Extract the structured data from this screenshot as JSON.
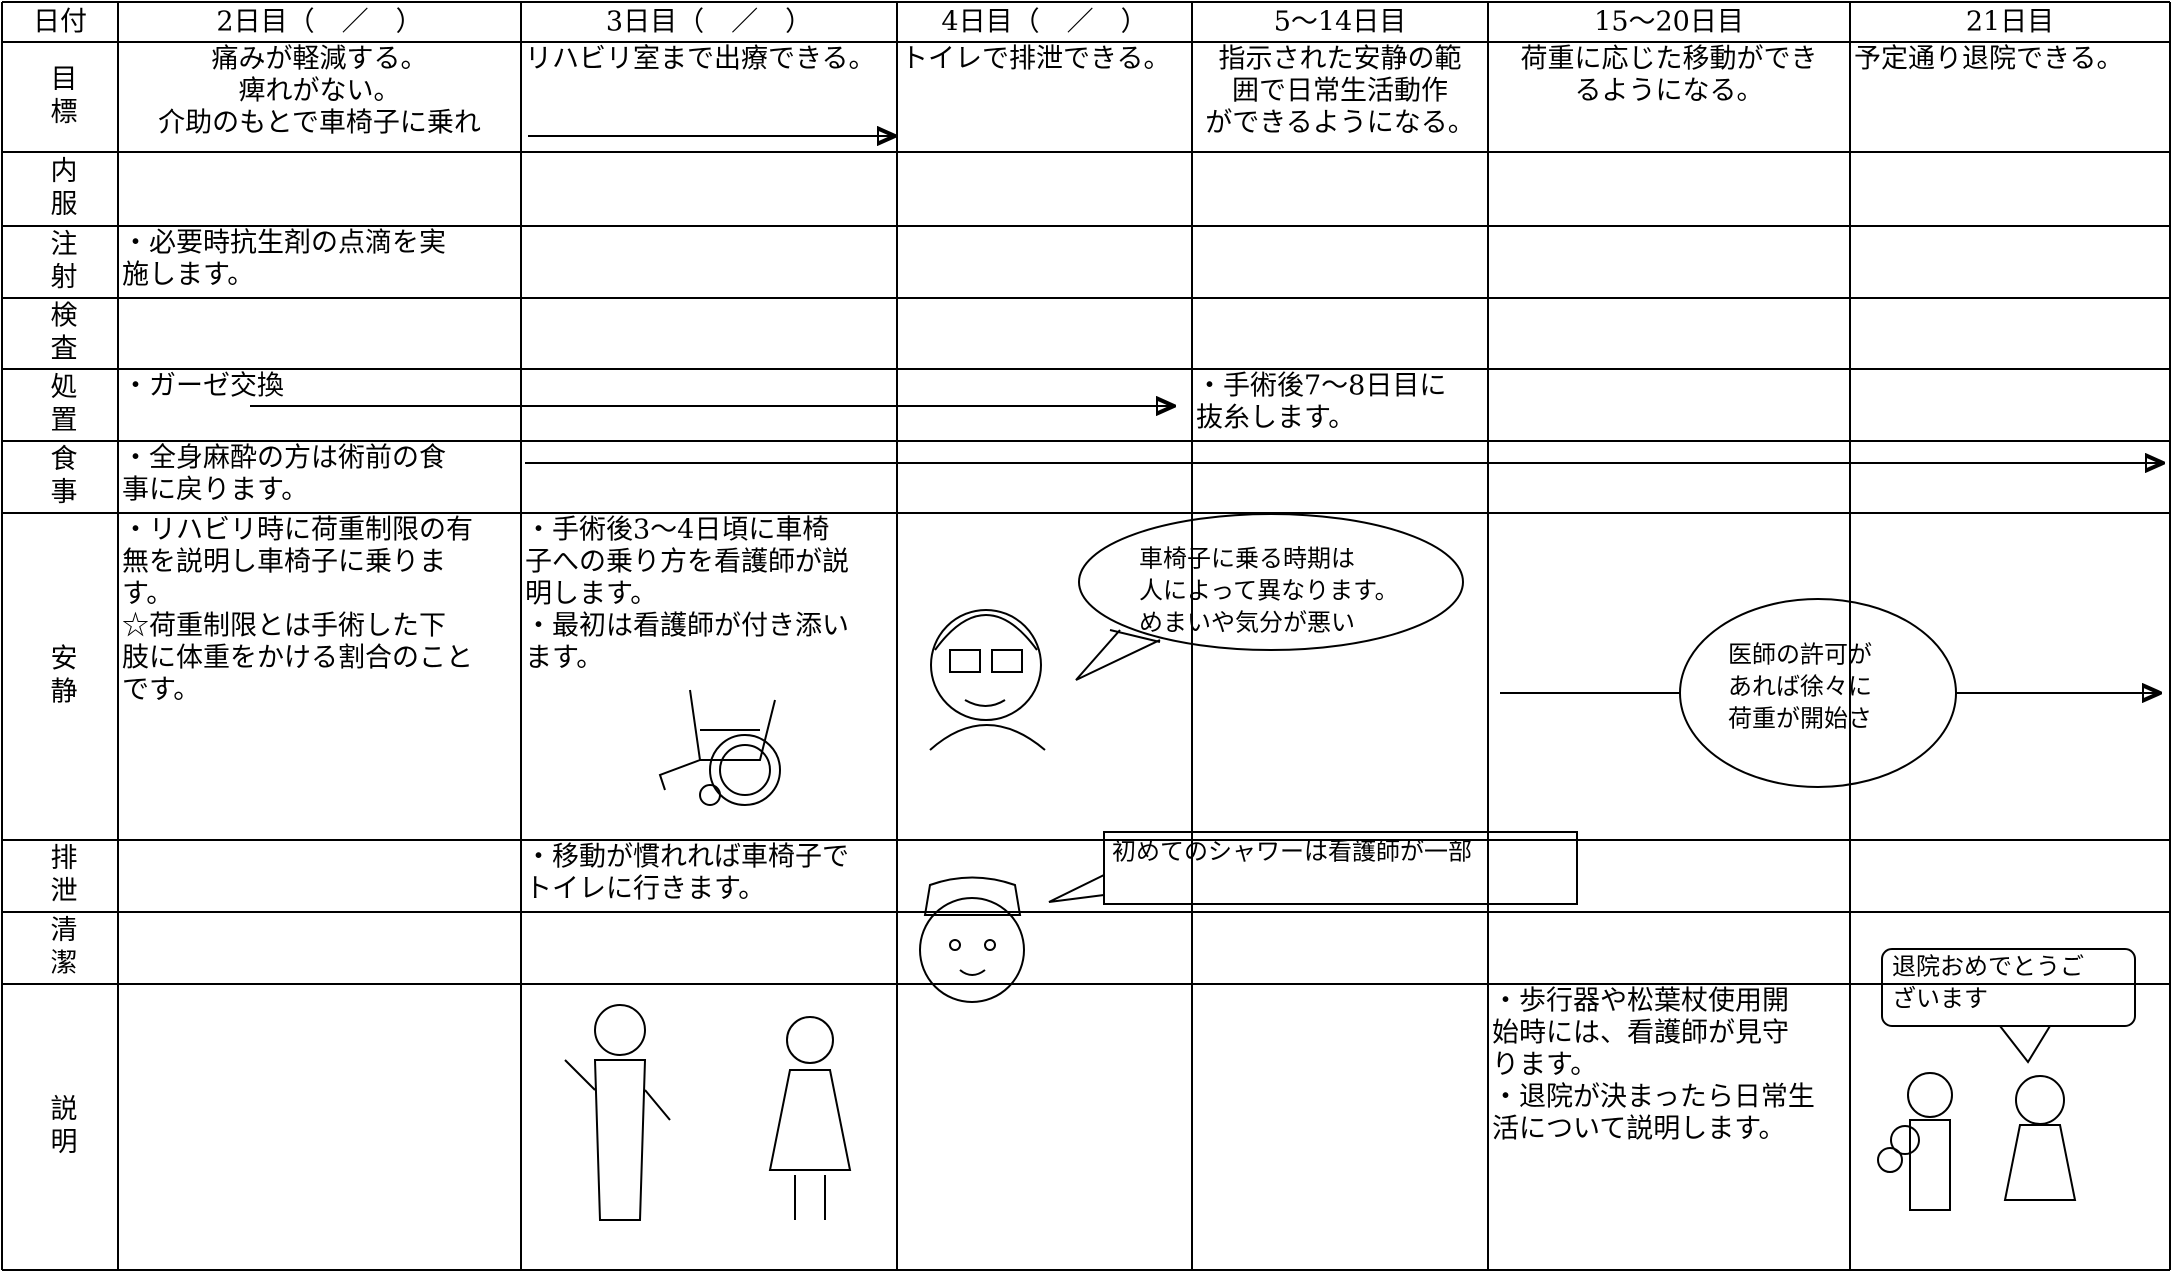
{
  "table": {
    "header": [
      "日付",
      "2日目（　／　）",
      "3日目（　／　）",
      "4日目（　／　）",
      "5〜14日目",
      "15〜20日目",
      "21日目"
    ],
    "rows": [
      {
        "label": "目標",
        "cells": [
          [
            "痛みが軽減する。",
            "痺れがない。",
            "介助のもとで車椅子に乗れ"
          ],
          [
            "リハビリ室まで出療できる。"
          ],
          [
            "トイレで排泄できる。"
          ],
          [
            "指示された安静の範",
            "囲で日常生活動作",
            "ができるようになる。"
          ],
          [
            "荷重に応じた移動ができ",
            "るようになる。"
          ],
          [
            "予定通り退院できる。"
          ]
        ]
      },
      {
        "label": "内服",
        "cells": [
          null,
          null,
          null,
          null,
          null,
          null
        ]
      },
      {
        "label": "注射",
        "cells": [
          [
            "・必要時抗生剤の点滴を実",
            "施します。"
          ],
          null,
          null,
          null,
          null,
          null
        ]
      },
      {
        "label": "検査",
        "cells": [
          null,
          null,
          null,
          null,
          null,
          null
        ]
      },
      {
        "label": "処置",
        "cells": [
          [
            "・ガーゼ交換"
          ],
          null,
          null,
          [
            "・手術後7〜8日目に",
            "抜糸します。"
          ],
          null,
          null
        ]
      },
      {
        "label": "食事",
        "cells": [
          [
            "・全身麻酔の方は術前の食",
            "事に戻ります。"
          ],
          null,
          null,
          null,
          null,
          null
        ]
      },
      {
        "label": "安静",
        "cells": [
          [
            "・リハビリ時に荷重制限の有",
            "無を説明し車椅子に乗りま",
            "す。",
            "☆荷重制限とは手術した下",
            "肢に体重をかける割合のこと",
            "です。"
          ],
          [
            "・手術後3〜4日頃に車椅",
            "子への乗り方を看護師が説",
            "明します。",
            "・最初は看護師が付き添い",
            "ます。"
          ],
          null,
          null,
          null,
          null
        ]
      },
      {
        "label": "排泄",
        "cells": [
          null,
          [
            "・移動が慣れれば車椅子で",
            "トイレに行きます。"
          ],
          null,
          null,
          null,
          null
        ]
      },
      {
        "label": "清潔",
        "cells": [
          null,
          null,
          null,
          null,
          null,
          null
        ]
      },
      {
        "label": "説明",
        "cells": [
          null,
          null,
          null,
          null,
          [
            "・歩行器や松葉杖使用開",
            "始時には、看護師が見守",
            "ります。",
            "・退院が決まったら日常生",
            "活について説明します。"
          ],
          null
        ]
      }
    ]
  },
  "callouts": [
    [
      "車椅子に乗る時期は",
      "人によって異なります。",
      "めまいや気分が悪い"
    ],
    [
      "医師の許可が",
      "あれば徐々に",
      "荷重が開始さ"
    ],
    [
      "初めてのシャワーは看護師が一部"
    ],
    [
      "退院おめでとうご",
      "ざいます"
    ]
  ]
}
